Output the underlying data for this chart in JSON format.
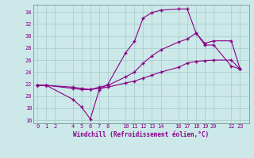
{
  "xlabel": "Windchill (Refroidissement éolien,°C)",
  "bg_color": "#cce8e8",
  "grid_color": "#aacfcf",
  "line_color": "#880088",
  "x_ticks": [
    0,
    1,
    2,
    4,
    5,
    6,
    7,
    8,
    10,
    11,
    12,
    13,
    14,
    16,
    17,
    18,
    19,
    20,
    22,
    23
  ],
  "series1_x": [
    0,
    1,
    4,
    5,
    6,
    7,
    8,
    10,
    11,
    12,
    13,
    14,
    16,
    17,
    18,
    19,
    20,
    22,
    23
  ],
  "series1_y": [
    21.8,
    21.8,
    19.5,
    18.2,
    16.2,
    21.0,
    22.0,
    27.2,
    29.1,
    33.0,
    33.9,
    34.3,
    34.5,
    34.5,
    30.5,
    28.5,
    28.5,
    25.0,
    24.5
  ],
  "series2_x": [
    0,
    1,
    4,
    5,
    6,
    7,
    8,
    10,
    11,
    12,
    13,
    14,
    16,
    17,
    18,
    19,
    20,
    22,
    23
  ],
  "series2_y": [
    21.8,
    21.8,
    21.3,
    21.1,
    21.1,
    21.3,
    21.5,
    22.2,
    22.5,
    23.0,
    23.5,
    24.0,
    24.8,
    25.5,
    25.8,
    25.9,
    26.0,
    26.0,
    24.5
  ],
  "series3_x": [
    0,
    1,
    4,
    5,
    6,
    7,
    8,
    10,
    11,
    12,
    13,
    14,
    16,
    17,
    18,
    19,
    20,
    22,
    23
  ],
  "series3_y": [
    21.8,
    21.8,
    21.5,
    21.3,
    21.1,
    21.5,
    21.8,
    23.2,
    24.0,
    25.5,
    26.7,
    27.7,
    29.0,
    29.5,
    30.5,
    28.8,
    29.2,
    29.2,
    24.5
  ],
  "ylim": [
    15.5,
    35.2
  ],
  "xlim": [
    -0.5,
    24.0
  ],
  "yticks": [
    16,
    18,
    20,
    22,
    24,
    26,
    28,
    30,
    32,
    34
  ]
}
